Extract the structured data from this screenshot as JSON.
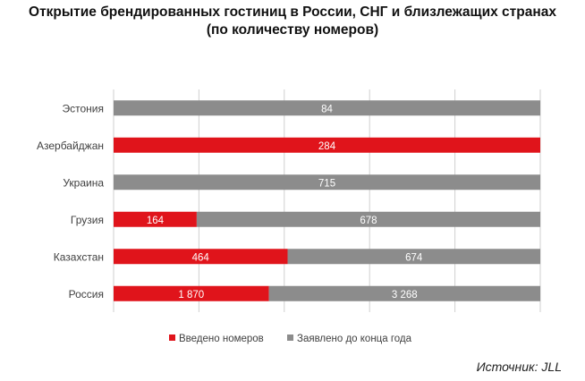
{
  "title_line1": "Открытие брендированных гостиниц в России, СНГ и близлежащих странах",
  "title_line2": "(по количеству номеров)",
  "source": "Источник: JLL",
  "colors": {
    "introduced": "#e0141b",
    "announced": "#8c8c8c"
  },
  "chart_data": {
    "type": "bar",
    "orientation": "horizontal",
    "stacked": true,
    "normalized": true,
    "categories": [
      "Эстония",
      "Азербайджан",
      "Украина",
      "Грузия",
      "Казахстан",
      "Россия"
    ],
    "series": [
      {
        "name": "Введено номеров",
        "values": [
          0,
          284,
          0,
          164,
          464,
          1870
        ],
        "labels": [
          "",
          "284",
          "",
          "164",
          "464",
          "1 870"
        ]
      },
      {
        "name": "Заявлено до конца года",
        "values": [
          84,
          0,
          715,
          678,
          674,
          3268
        ],
        "labels": [
          "84",
          "",
          "715",
          "678",
          "674",
          "3 268"
        ]
      }
    ],
    "legend": "bottom",
    "grid": true,
    "xlim": [
      0,
      1
    ]
  }
}
